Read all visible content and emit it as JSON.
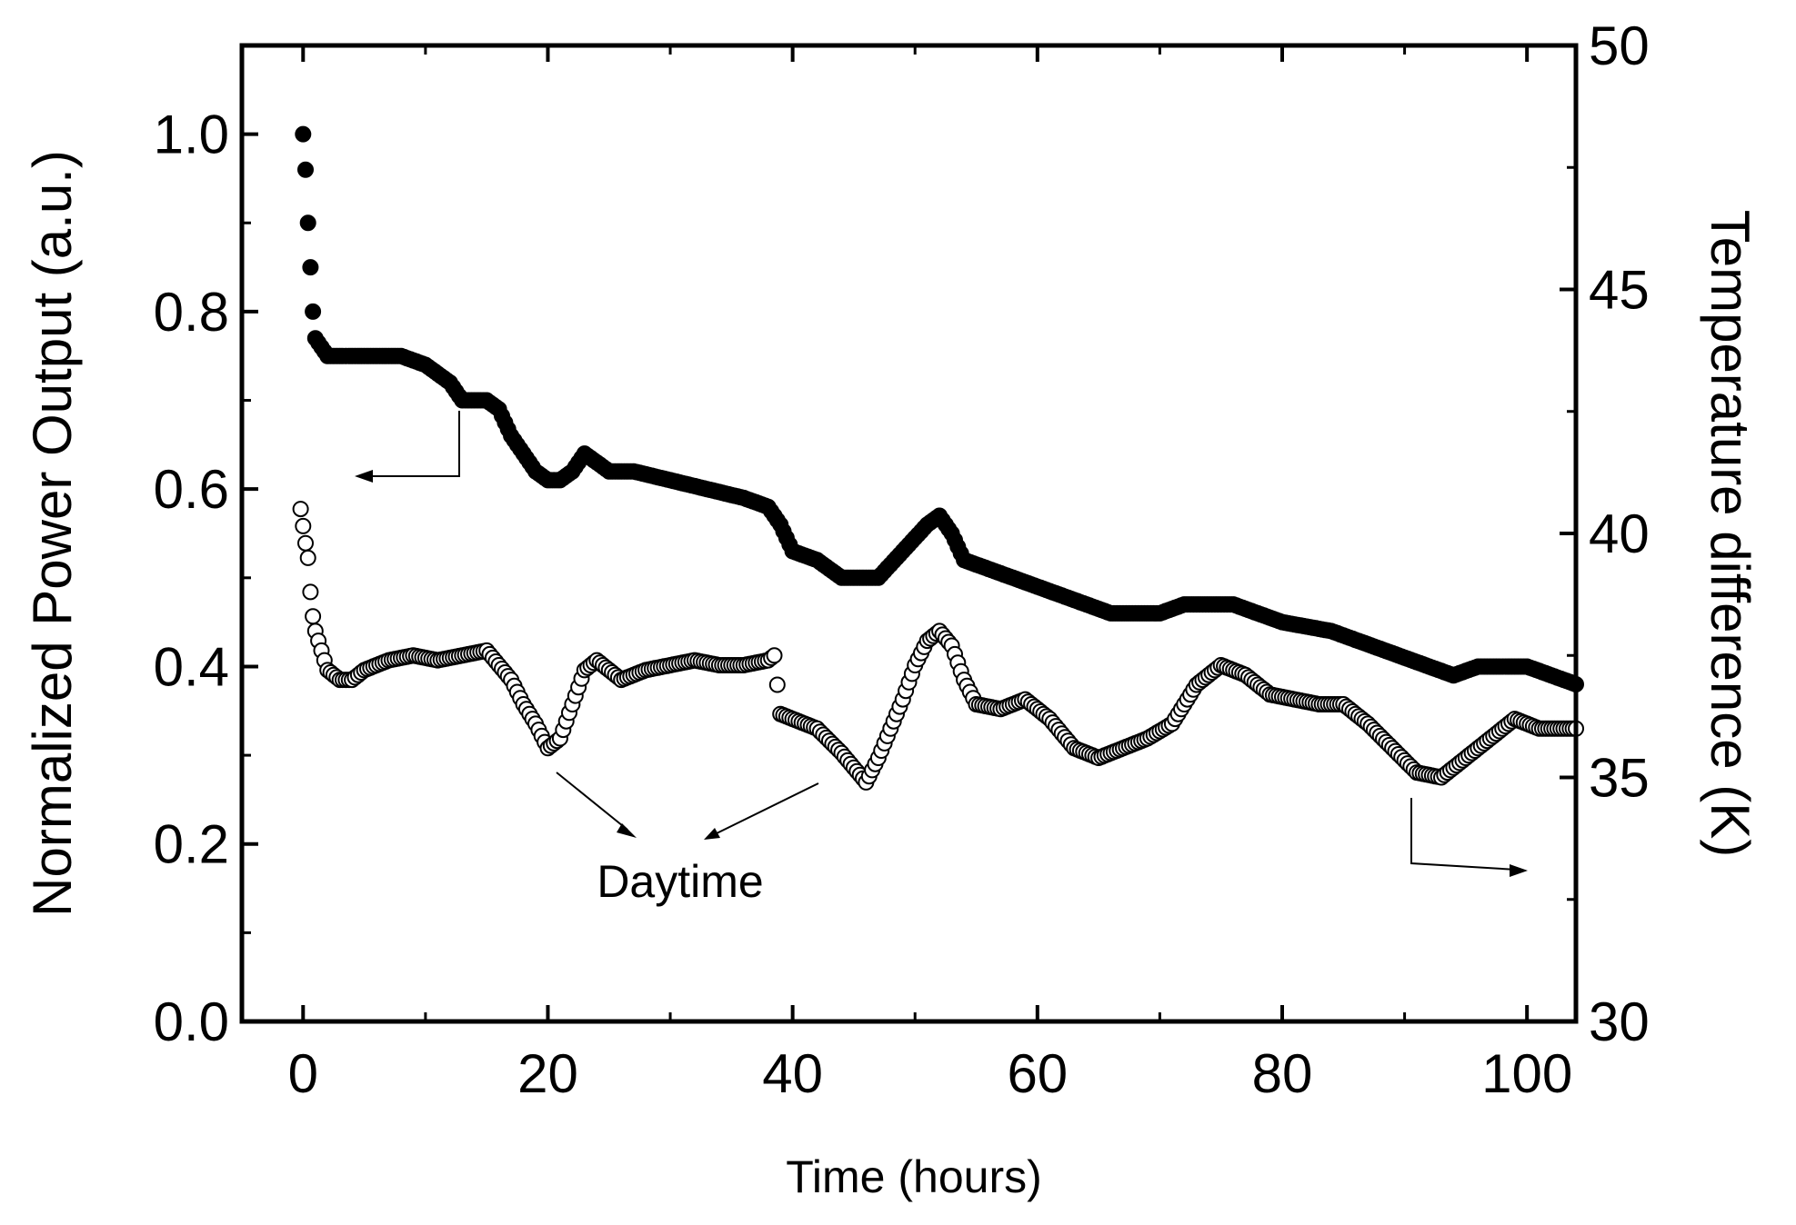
{
  "chart_data": {
    "type": "scatter",
    "title": "",
    "xlabel": "Time (hours)",
    "ylabel_left": "Normalized Power Output (a.u.)",
    "ylabel_right": "Temperature difference (K)",
    "xlim": [
      -5,
      104
    ],
    "ylim_left": [
      0.0,
      1.1
    ],
    "ylim_right": [
      30,
      50
    ],
    "x_ticks": [
      0,
      20,
      40,
      60,
      80,
      100
    ],
    "y_left_ticks": [
      0.0,
      0.2,
      0.4,
      0.6,
      0.8,
      1.0
    ],
    "y_left_tick_labels": [
      "0.0",
      "0.2",
      "0.4",
      "0.6",
      "0.8",
      "1.0"
    ],
    "y_right_ticks": [
      30,
      35,
      40,
      45,
      50
    ],
    "series": [
      {
        "name": "Normalized Power Output",
        "axis": "left",
        "marker": "filled-circle",
        "color": "#000000",
        "x": [
          0,
          0.2,
          0.4,
          0.6,
          0.8,
          1,
          1.5,
          2,
          3,
          5,
          8,
          10,
          12,
          13,
          15,
          16,
          17,
          18,
          19,
          20,
          21,
          22,
          23,
          24,
          25,
          27,
          30,
          33,
          36,
          38,
          39,
          40,
          42,
          44,
          45,
          47,
          49,
          51,
          52,
          53,
          54,
          56,
          60,
          62,
          64,
          66,
          68,
          70,
          72,
          74,
          76,
          78,
          80,
          84,
          88,
          92,
          94,
          96,
          98,
          100,
          102,
          104
        ],
        "values": [
          1.0,
          0.96,
          0.9,
          0.85,
          0.8,
          0.77,
          0.76,
          0.75,
          0.75,
          0.75,
          0.75,
          0.74,
          0.72,
          0.7,
          0.7,
          0.69,
          0.66,
          0.64,
          0.62,
          0.61,
          0.61,
          0.62,
          0.64,
          0.63,
          0.62,
          0.62,
          0.61,
          0.6,
          0.59,
          0.58,
          0.56,
          0.53,
          0.52,
          0.5,
          0.5,
          0.5,
          0.53,
          0.56,
          0.57,
          0.55,
          0.52,
          0.51,
          0.49,
          0.48,
          0.47,
          0.46,
          0.46,
          0.46,
          0.47,
          0.47,
          0.47,
          0.46,
          0.45,
          0.44,
          0.42,
          0.4,
          0.39,
          0.4,
          0.4,
          0.4,
          0.39,
          0.38
        ]
      },
      {
        "name": "Temperature difference",
        "axis": "right",
        "marker": "open-circle",
        "color": "#000000",
        "x": [
          -0.2,
          0.2,
          0.4,
          0.6,
          0.8,
          1,
          1.5,
          2,
          3,
          4,
          5,
          7,
          9,
          11,
          13,
          15,
          17,
          18,
          19,
          20,
          21,
          22,
          23,
          24,
          26,
          28,
          30,
          32,
          34,
          36,
          38,
          38.5,
          39,
          40,
          42,
          44,
          45,
          46,
          47,
          48,
          49,
          50,
          51,
          52,
          53,
          54,
          55,
          57,
          59,
          61,
          63,
          65,
          67,
          69,
          71,
          73,
          75,
          77,
          79,
          81,
          83,
          85,
          87,
          89,
          91,
          93,
          95,
          97,
          99,
          101,
          103,
          104
        ],
        "values": [
          40.5,
          39.8,
          39.5,
          38.8,
          38.3,
          38.0,
          37.6,
          37.2,
          37.0,
          37.0,
          37.2,
          37.4,
          37.5,
          37.4,
          37.5,
          37.6,
          37.0,
          36.5,
          36.1,
          35.6,
          35.8,
          36.5,
          37.2,
          37.4,
          37.0,
          37.2,
          37.3,
          37.4,
          37.3,
          37.3,
          37.4,
          37.5,
          36.3,
          36.2,
          36.0,
          35.5,
          35.2,
          34.9,
          35.4,
          36.0,
          36.6,
          37.3,
          37.8,
          38.0,
          37.7,
          37.0,
          36.5,
          36.4,
          36.6,
          36.2,
          35.6,
          35.4,
          35.6,
          35.8,
          36.1,
          36.9,
          37.3,
          37.1,
          36.7,
          36.6,
          36.5,
          36.5,
          36.1,
          35.6,
          35.1,
          35.0,
          35.4,
          35.8,
          36.2,
          36.0,
          36.0,
          36.0
        ]
      }
    ],
    "annotations": [
      {
        "text": "Daytime",
        "meaning": "arrows point to two temperature minima at ~20 h and ~44 h"
      },
      {
        "text": "",
        "meaning": "arrow from filled series pointing to left axis"
      },
      {
        "text": "",
        "meaning": "arrow from open series pointing to right axis"
      }
    ],
    "grid": false,
    "legend": "none"
  }
}
